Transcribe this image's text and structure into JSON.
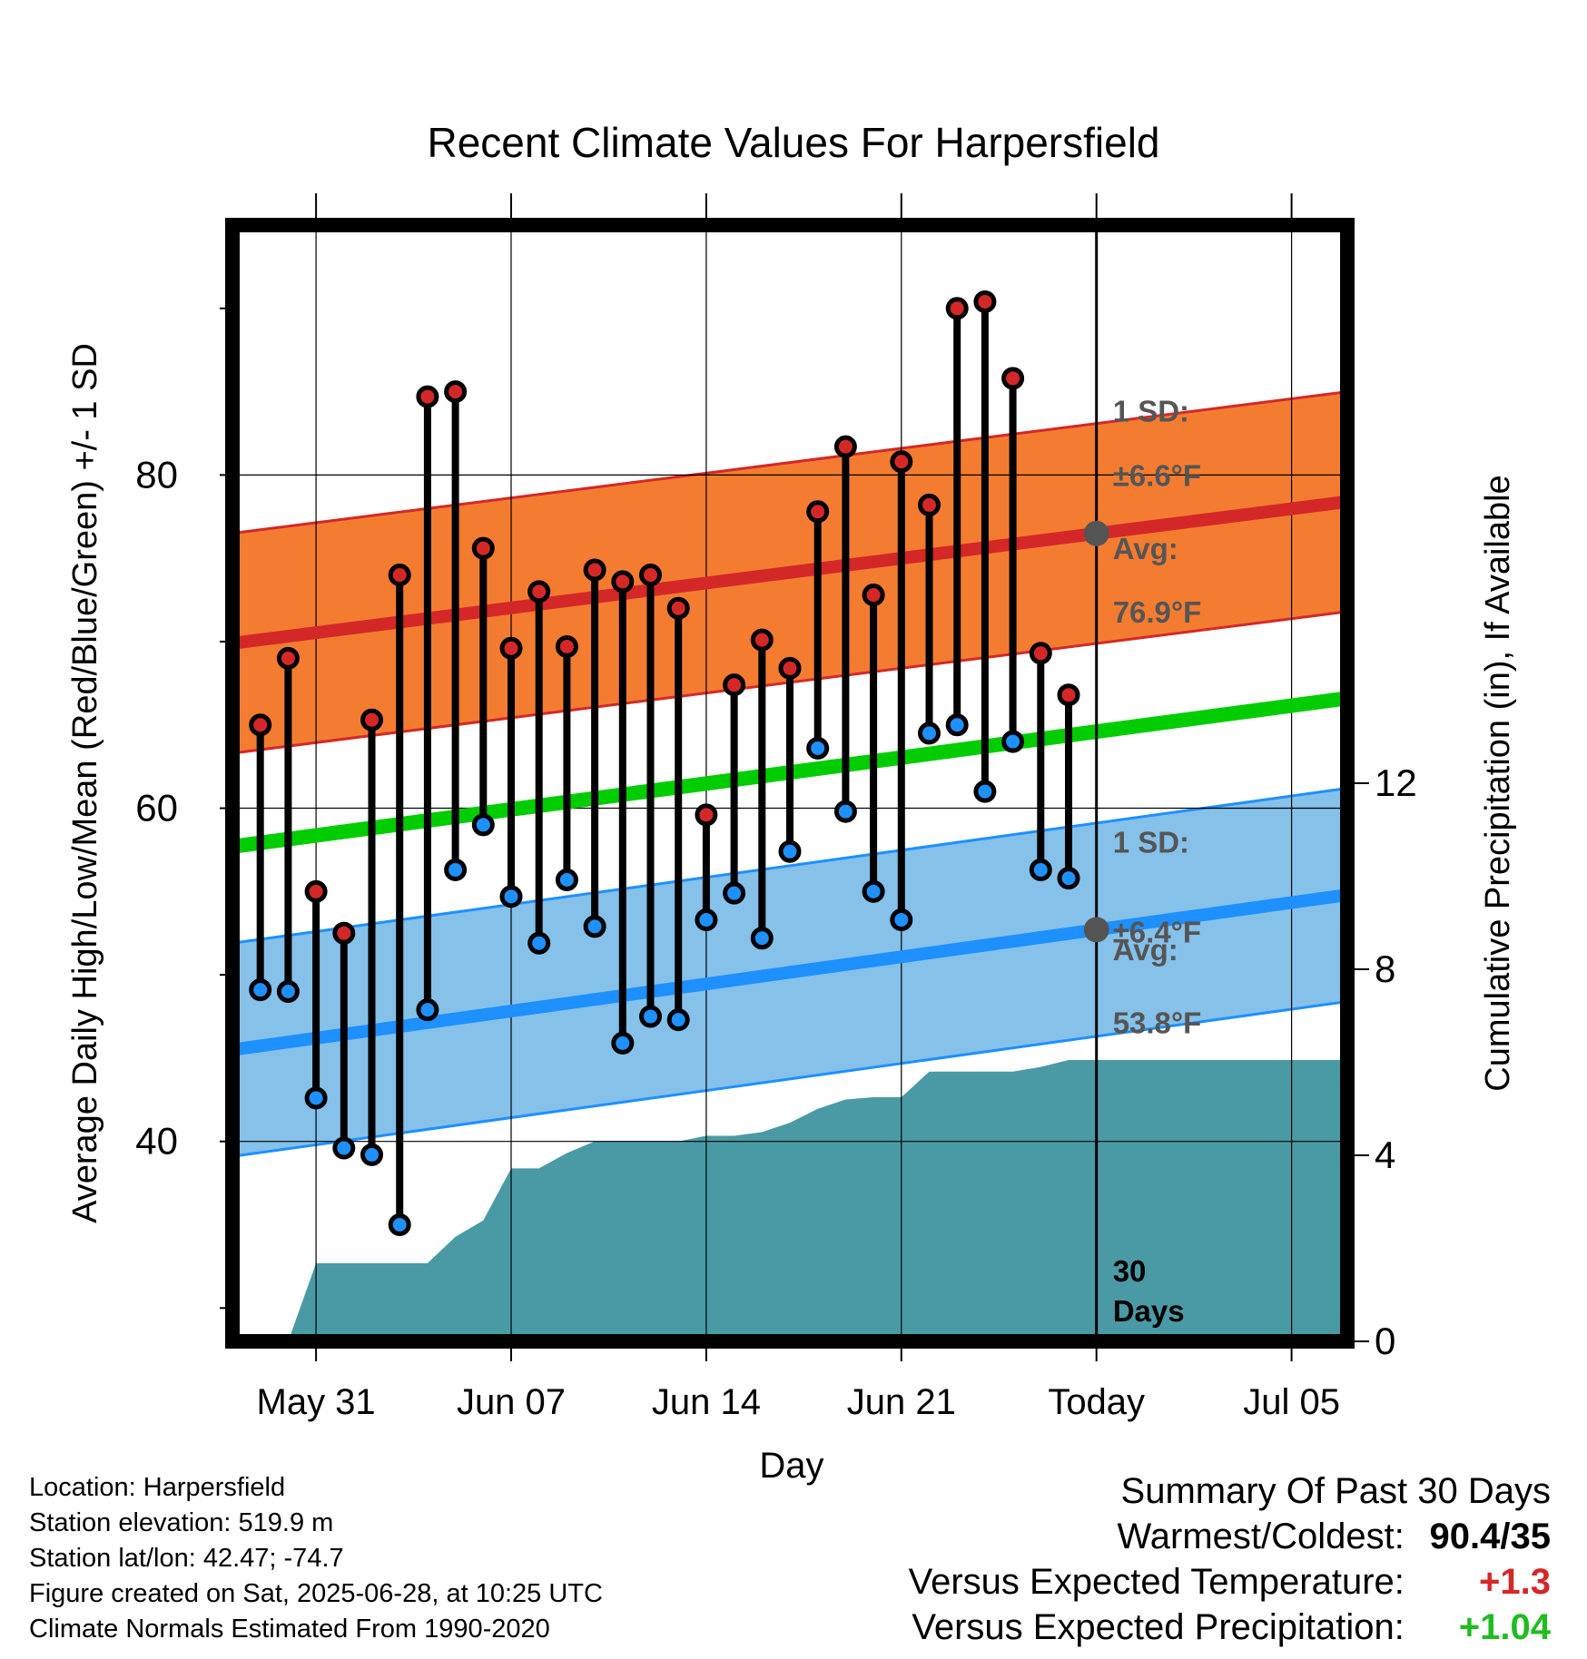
{
  "chart_data": {
    "type": "line",
    "title": "Recent Climate Values For Harpersfield",
    "xlabel": "Day",
    "ylabel": "Average Daily High/Low/Mean (Red/Blue/Green) +/- 1 SD",
    "y2label": "Cumulative Precipitation (in), If Available",
    "ylim": [
      28,
      95
    ],
    "y2lim": [
      0,
      24
    ],
    "yticks": [
      "40",
      "60",
      "80"
    ],
    "y2ticks": [
      "0",
      "4",
      "8",
      "12"
    ],
    "xticks": [
      "May 31",
      "Jun 07",
      "Jun 14",
      "Jun 21",
      "Today",
      "Jul 05"
    ],
    "days": [
      "2025-05-29",
      "2025-05-30",
      "2025-05-31",
      "2025-06-01",
      "2025-06-02",
      "2025-06-03",
      "2025-06-04",
      "2025-06-05",
      "2025-06-06",
      "2025-06-07",
      "2025-06-08",
      "2025-06-09",
      "2025-06-10",
      "2025-06-11",
      "2025-06-12",
      "2025-06-13",
      "2025-06-14",
      "2025-06-15",
      "2025-06-16",
      "2025-06-17",
      "2025-06-18",
      "2025-06-19",
      "2025-06-20",
      "2025-06-21",
      "2025-06-22",
      "2025-06-23",
      "2025-06-24",
      "2025-06-25",
      "2025-06-26",
      "2025-06-27"
    ],
    "highs": [
      65.0,
      69.0,
      55.0,
      52.5,
      65.3,
      74.0,
      84.7,
      85.0,
      75.6,
      69.6,
      73.0,
      69.7,
      74.3,
      73.6,
      74.0,
      72.0,
      59.6,
      67.4,
      70.1,
      68.4,
      77.8,
      81.7,
      72.8,
      80.8,
      78.2,
      90.0,
      90.4,
      85.8,
      69.3,
      66.8
    ],
    "lows": [
      49.1,
      49.0,
      42.6,
      39.6,
      39.2,
      35.0,
      47.9,
      56.3,
      59.0,
      54.7,
      51.9,
      55.7,
      52.9,
      45.9,
      47.5,
      47.3,
      53.3,
      54.9,
      52.2,
      57.4,
      63.6,
      59.8,
      55.0,
      53.3,
      64.5,
      65.0,
      61.0,
      64.0,
      56.3,
      55.8
    ],
    "normal_x": [
      "2025-05-28",
      "2025-07-07"
    ],
    "normal_high": [
      69.9,
      78.4
    ],
    "normal_high_sd": 6.6,
    "normal_low": [
      45.5,
      54.8
    ],
    "normal_low_sd": 6.4,
    "normal_mean": [
      57.7,
      66.6
    ],
    "precip_x": [
      "2025-05-30",
      "2025-05-31",
      "2025-06-01",
      "2025-06-02",
      "2025-06-03",
      "2025-06-04",
      "2025-06-05",
      "2025-06-06",
      "2025-06-07",
      "2025-06-08",
      "2025-06-09",
      "2025-06-10",
      "2025-06-11",
      "2025-06-12",
      "2025-06-13",
      "2025-06-14",
      "2025-06-15",
      "2025-06-16",
      "2025-06-17",
      "2025-06-18",
      "2025-06-19",
      "2025-06-20",
      "2025-06-21",
      "2025-06-22",
      "2025-06-23",
      "2025-06-24",
      "2025-06-25",
      "2025-06-26",
      "2025-06-27",
      "2025-06-28",
      "2025-07-07"
    ],
    "precip_cum": [
      0.0,
      1.68,
      1.68,
      1.68,
      1.68,
      1.68,
      2.25,
      2.6,
      3.72,
      3.72,
      4.05,
      4.3,
      4.3,
      4.3,
      4.3,
      4.42,
      4.42,
      4.5,
      4.7,
      5.0,
      5.2,
      5.25,
      5.25,
      5.8,
      5.8,
      5.8,
      5.8,
      5.9,
      6.05,
      6.05,
      6.05
    ],
    "today_label": "Today",
    "annotations": {
      "high_sd": "1 SD:",
      "high_sd_val": "±6.6°F",
      "high_avg": "Avg:",
      "high_avg_val": "76.9°F",
      "low_sd": "1 SD:",
      "low_sd_val": "±6.4°F",
      "low_avg": "Avg:",
      "low_avg_val": "53.8°F",
      "days_num": "30",
      "days_word": "Days"
    },
    "colors": {
      "high_band": "#f47c30",
      "high_line": "#d42828",
      "low_band": "#85c1e9",
      "low_line": "#1e90ff",
      "mean_line": "#00cc00",
      "precip": "#4a9aa5",
      "high_marker": "#d42828",
      "low_marker": "#1e90ff",
      "annotation_text": "#555555"
    }
  },
  "footer": {
    "location": "Location: Harpersfield",
    "elevation": "Station elevation: 519.9 m",
    "latlon": "Station lat/lon: 42.47; -74.7",
    "created": "Figure created on Sat, 2025-06-28, at 10:25 UTC",
    "normals": "Climate Normals Estimated From 1990-2020"
  },
  "summary": {
    "title": "Summary Of Past 30 Days",
    "warmest_label": "Warmest/Coldest:",
    "warmest_value": "90.4/35",
    "temp_label": "Versus Expected Temperature:",
    "temp_value": "+1.3",
    "temp_color": "#d42828",
    "precip_label": "Versus Expected Precipitation:",
    "precip_value": "+1.04",
    "precip_color": "#22bb22"
  }
}
